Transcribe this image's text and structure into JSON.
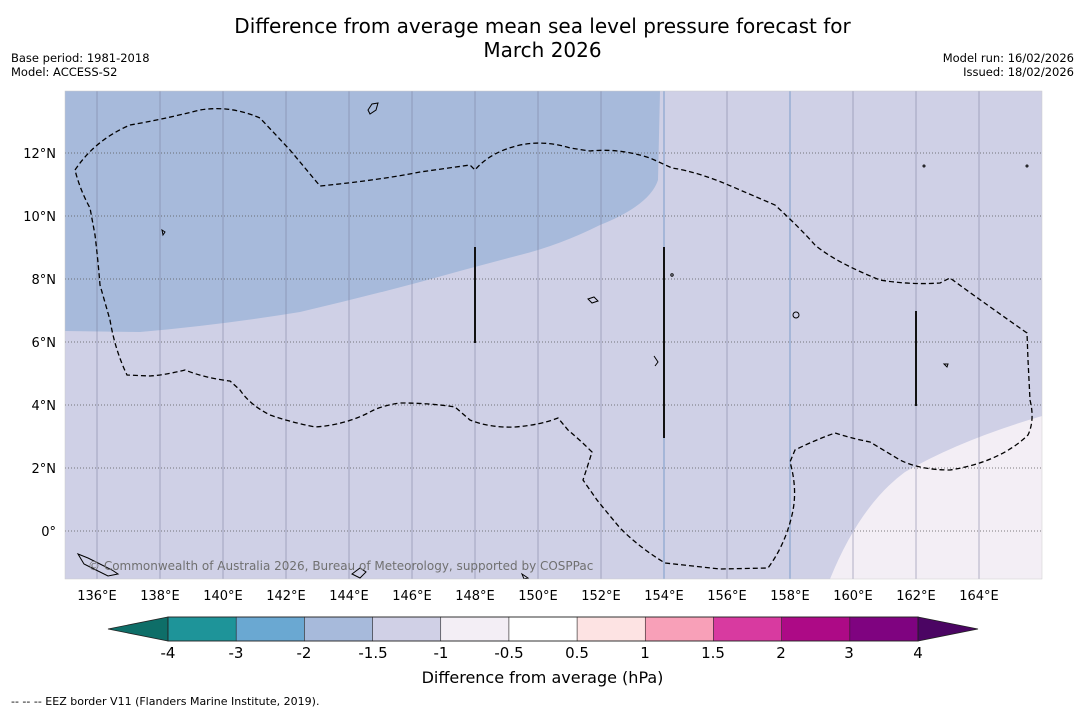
{
  "title": {
    "line1": "Difference from average mean sea level pressure forecast for",
    "line2": "March 2026"
  },
  "meta_left": {
    "base_period": "Base period: 1981-2018",
    "model": "Model: ACCESS-S2"
  },
  "meta_right": {
    "model_run": "Model run: 16/02/2026",
    "issued": "Issued: 18/02/2026"
  },
  "map": {
    "lat_labels": [
      "12°N",
      "10°N",
      "8°N",
      "6°N",
      "4°N",
      "2°N",
      "0°"
    ],
    "lon_labels": [
      "136°E",
      "138°E",
      "140°E",
      "142°E",
      "144°E",
      "146°E",
      "148°E",
      "150°E",
      "152°E",
      "154°E",
      "156°E",
      "158°E",
      "160°E",
      "162°E",
      "164°E"
    ],
    "copyright": "© Commonwealth of Australia 2026, Bureau of Meteorology, supported by COSPPac",
    "region_colors": {
      "minus_1_5_to_minus_1": "#a7badb",
      "minus_1_to_minus_0_5": "#cfd0e6",
      "minus_0_5_to_0_5": "#f3eef5"
    }
  },
  "colorbar": {
    "ticks": [
      "-4",
      "-3",
      "-2",
      "-1.5",
      "-1",
      "-0.5",
      "0.5",
      "1",
      "1.5",
      "2",
      "3",
      "4"
    ],
    "colors": [
      "#1e9499",
      "#6aa8d2",
      "#a7badb",
      "#d0d0e6",
      "#f3eef5",
      "#ffffff",
      "#fde3e3",
      "#f8a0b8",
      "#d83aa0",
      "#ad0a86",
      "#7f0380"
    ],
    "under_color": "#0e6e68",
    "over_color": "#4b0563",
    "label": "Difference from average (hPa)"
  },
  "footer": {
    "legend_text": "--  --  -- EEZ border V11 (Flanders Marine Institute, 2019)."
  }
}
